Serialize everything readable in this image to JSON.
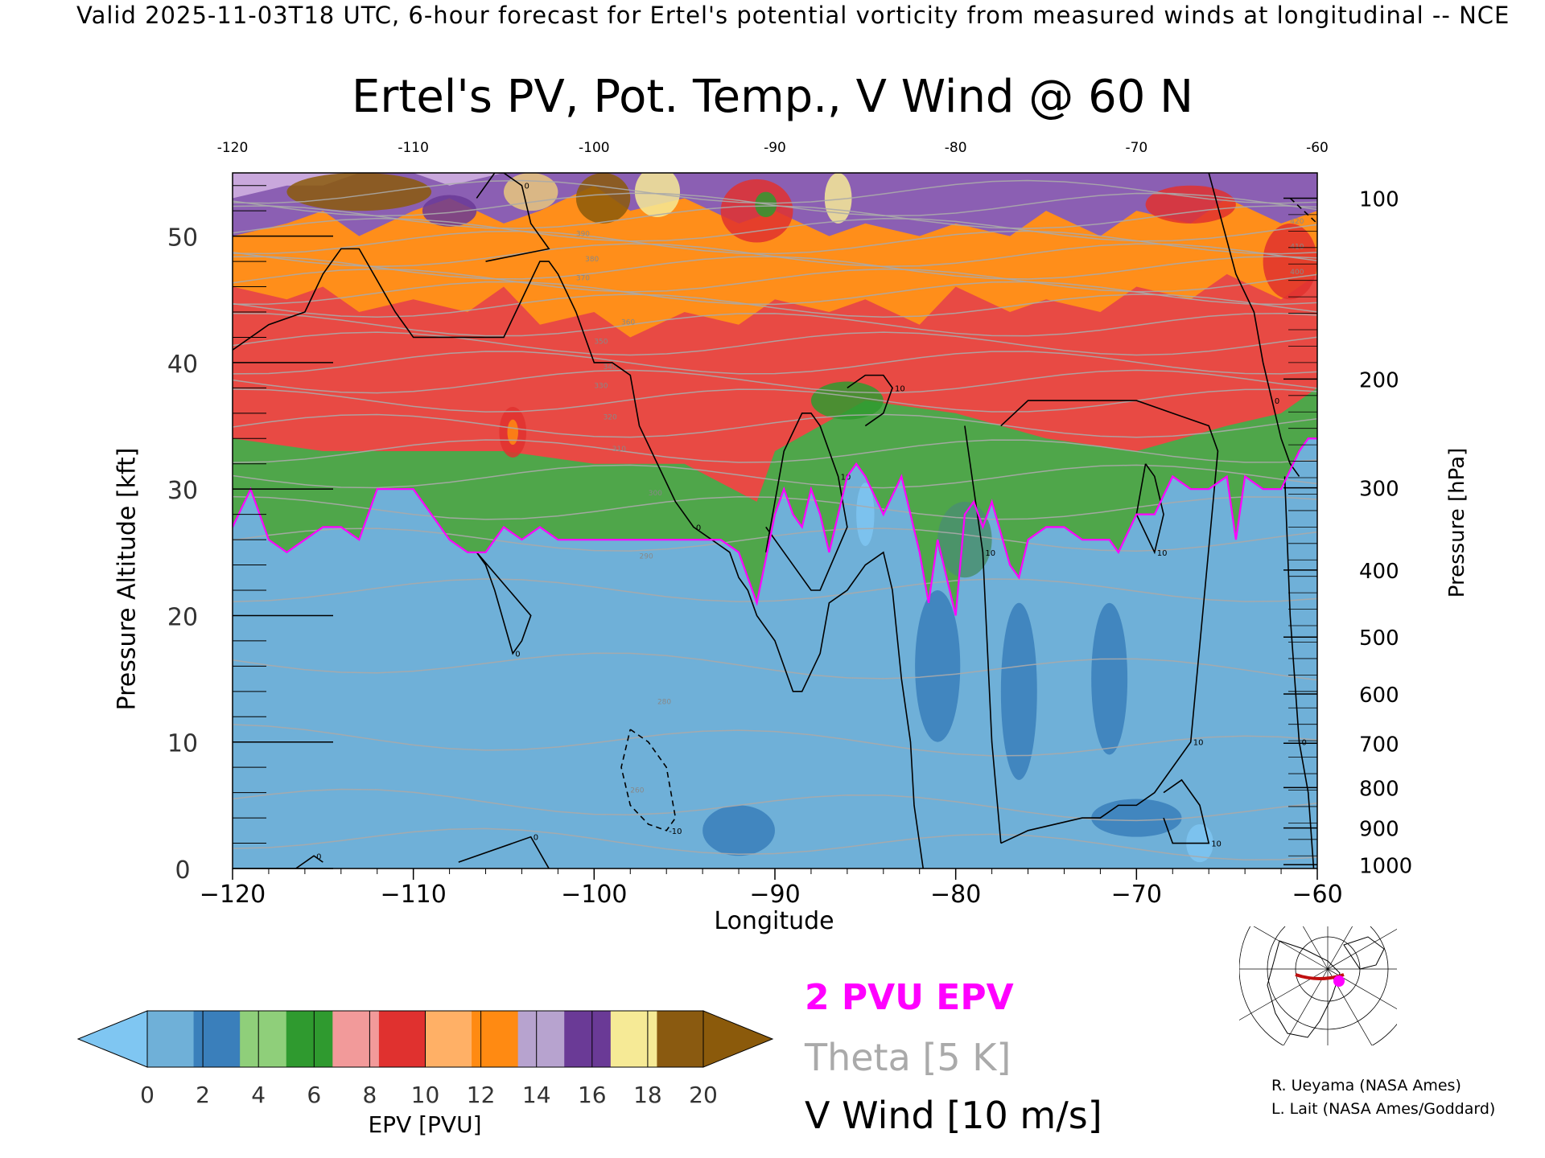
{
  "header": "Valid 2025-11-03T18 UTC, 6-hour forecast for Ertel's potential vorticity from measured winds at longitudinal -- NCE",
  "chart_data": {
    "type": "heatmap",
    "title": "Ertel's PV, Pot. Temp., V Wind @ 60 N",
    "xlabel": "Longitude",
    "ylabel": "Pressure Altitude [kft]",
    "ylabel_right": "Pressure [hPa]",
    "xlim": [
      -120,
      -60
    ],
    "ylim": [
      0,
      55
    ],
    "x_ticks": [
      "-120",
      "-110",
      "-100",
      "-90",
      "-80",
      "-70",
      "-60"
    ],
    "y_ticks": [
      "0",
      "10",
      "20",
      "30",
      "40",
      "50"
    ],
    "pressure_ticks": [
      {
        "hpa": "100",
        "kft": 53.0
      },
      {
        "hpa": "200",
        "kft": 38.7
      },
      {
        "hpa": "300",
        "kft": 30.1
      },
      {
        "hpa": "400",
        "kft": 23.6
      },
      {
        "hpa": "500",
        "kft": 18.3
      },
      {
        "hpa": "600",
        "kft": 13.8
      },
      {
        "hpa": "700",
        "kft": 9.9
      },
      {
        "hpa": "800",
        "kft": 6.4
      },
      {
        "hpa": "900",
        "kft": 3.2
      },
      {
        "hpa": "1000",
        "kft": 0.3
      }
    ],
    "colorbar": {
      "label": "EPV [PVU]",
      "ticks": [
        "0",
        "2",
        "4",
        "6",
        "8",
        "10",
        "12",
        "14",
        "16",
        "18",
        "20"
      ],
      "colors": [
        "#6fb0d8",
        "#3a7fbb",
        "#8fcf7a",
        "#2f9a2f",
        "#f29a9a",
        "#e0312f",
        "#ffb066",
        "#ff8a12",
        "#b7a3cf",
        "#6a3a96",
        "#f6ea96",
        "#8a5a10"
      ],
      "under_color": "#7fc6f2",
      "over_color": "#8b5a0b"
    },
    "bands": [
      {
        "name": "EPV 0-2",
        "color": "#6fb0d8",
        "x": [
          -120,
          -119,
          -118,
          -117,
          -115,
          -114,
          -113,
          -112,
          -111,
          -110,
          -109,
          -108,
          -107,
          -106,
          -105,
          -104,
          -103,
          -102,
          -101,
          -100,
          -99,
          -98,
          -97,
          -96,
          -95,
          -94,
          -93,
          -92,
          -91.5,
          -91,
          -90,
          -89.5,
          -89,
          -88.5,
          -88,
          -87.5,
          -87,
          -86,
          -85.5,
          -85,
          -84,
          -83,
          -82.5,
          -82,
          -81.5,
          -81,
          -80,
          -79.5,
          -79,
          -78.5,
          -78,
          -77,
          -76.5,
          -76,
          -75,
          -74,
          -73,
          -72,
          -71.5,
          -71,
          -70,
          -69,
          -68,
          -67,
          -66,
          -65,
          -64.5,
          -64,
          -63,
          -62,
          -61,
          -60.5,
          -60
        ],
        "top": [
          27,
          30,
          26,
          25,
          27,
          27,
          26,
          30,
          30,
          30,
          28,
          26,
          25,
          25,
          27,
          26,
          27,
          26,
          26,
          26,
          26,
          26,
          26,
          26,
          26,
          26,
          26,
          25,
          23,
          21,
          28,
          30,
          28,
          27,
          30,
          28,
          25,
          31,
          32,
          31,
          28,
          31,
          28,
          25,
          21,
          26,
          20,
          28,
          29,
          27,
          29,
          24,
          23,
          26,
          27,
          27,
          26,
          26,
          26,
          25,
          28,
          28,
          31,
          30,
          30,
          31,
          26,
          31,
          30,
          30,
          33,
          34,
          34
        ]
      },
      {
        "name": "EPV 2-6",
        "color": "#4fa64a",
        "x": [
          -120,
          -115,
          -110,
          -105,
          -100,
          -95,
          -91,
          -90,
          -85,
          -80,
          -75,
          -70,
          -65,
          -62,
          -60
        ],
        "top": [
          34,
          33,
          33,
          33,
          32,
          32,
          29,
          33,
          37,
          36,
          34,
          33,
          35,
          36,
          38
        ]
      },
      {
        "name": "EPV 6-10",
        "color": "#e84a44",
        "x": [
          -120,
          -117,
          -115,
          -113,
          -110,
          -107,
          -105,
          -103,
          -100,
          -98,
          -95,
          -92,
          -90,
          -87,
          -85,
          -82,
          -80,
          -77,
          -75,
          -72,
          -70,
          -67,
          -65,
          -62,
          -60
        ],
        "top": [
          46,
          45,
          46,
          44,
          45,
          44,
          46,
          43,
          44,
          42,
          44,
          43,
          45,
          44,
          45,
          43,
          46,
          44,
          45,
          44,
          46,
          45,
          47,
          45,
          47
        ]
      },
      {
        "name": "EPV 10-14",
        "color": "#ff8e1a",
        "x": [
          -120,
          -117,
          -115,
          -113,
          -110,
          -108,
          -105,
          -103,
          -100,
          -98,
          -95,
          -92,
          -90,
          -87,
          -85,
          -82,
          -80,
          -77,
          -75,
          -72,
          -70,
          -67,
          -65,
          -62,
          -60
        ],
        "top": [
          50,
          51,
          52,
          50,
          52,
          53,
          51,
          52,
          54,
          52,
          53,
          51,
          52,
          50,
          51,
          50,
          51,
          50,
          52,
          50,
          52,
          51,
          53,
          51,
          52
        ]
      },
      {
        "name": "EPV 14-18",
        "color": "#8b5fb3",
        "x": [
          -120,
          -117,
          -115,
          -113,
          -110,
          -108,
          -105,
          -103,
          -100,
          -98,
          -95,
          -92,
          -90,
          -87,
          -85,
          -82,
          -80,
          -77,
          -75,
          -72,
          -70,
          -67,
          -65,
          -62,
          -60
        ],
        "top": [
          53,
          54,
          54,
          55,
          55,
          54,
          55,
          55,
          55,
          55,
          55,
          55,
          55,
          55,
          55,
          55,
          55,
          55,
          55,
          55,
          55,
          55,
          55,
          55,
          55
        ]
      }
    ],
    "patches": [
      {
        "color": "#8b5a0b",
        "x": -113,
        "y": 53.5,
        "w": 8,
        "h": 3
      },
      {
        "color": "#8b5a0b",
        "x": -99.5,
        "y": 53,
        "w": 3,
        "h": 4
      },
      {
        "color": "#e8c77c",
        "x": -103.5,
        "y": 53.5,
        "w": 3,
        "h": 3
      },
      {
        "color": "#f6ea96",
        "x": -96.5,
        "y": 53.5,
        "w": 2.5,
        "h": 4
      },
      {
        "color": "#6a3a96",
        "x": -108,
        "y": 52,
        "w": 3,
        "h": 2.5
      },
      {
        "color": "#e0312f",
        "x": -91,
        "y": 52,
        "w": 4,
        "h": 5
      },
      {
        "color": "#2f9a2f",
        "x": -90.5,
        "y": 52.5,
        "w": 1.2,
        "h": 2
      },
      {
        "color": "#f6ea96",
        "x": -86.5,
        "y": 53,
        "w": 1.5,
        "h": 4
      },
      {
        "color": "#e0312f",
        "x": -104.5,
        "y": 34.5,
        "w": 1.5,
        "h": 4
      },
      {
        "color": "#ff8a12",
        "x": -104.5,
        "y": 34.5,
        "w": 0.6,
        "h": 2
      },
      {
        "color": "#e0312f",
        "x": -67,
        "y": 52.5,
        "w": 5,
        "h": 3
      },
      {
        "color": "#e0312f",
        "x": -61.5,
        "y": 48,
        "w": 3,
        "h": 6
      },
      {
        "color": "#2f9a2f",
        "x": -86,
        "y": 37,
        "w": 4,
        "h": 3
      },
      {
        "color": "#4a8f6e",
        "x": -79.5,
        "y": 26,
        "w": 3,
        "h": 6
      },
      {
        "color": "#7fc6f2",
        "x": -85,
        "y": 28,
        "w": 1,
        "h": 5
      },
      {
        "color": "#7fc6f2",
        "x": -66.5,
        "y": 2,
        "w": 1.5,
        "h": 3
      },
      {
        "color": "#3a7fbb",
        "x": -81,
        "y": 16,
        "w": 2.5,
        "h": 12
      },
      {
        "color": "#3a7fbb",
        "x": -76.5,
        "y": 14,
        "w": 2,
        "h": 14
      },
      {
        "color": "#3a7fbb",
        "x": -71.5,
        "y": 15,
        "w": 2,
        "h": 12
      },
      {
        "color": "#3a7fbb",
        "x": -92,
        "y": 3,
        "w": 4,
        "h": 4
      },
      {
        "color": "#3a7fbb",
        "x": -70,
        "y": 4,
        "w": 5,
        "h": 3
      }
    ],
    "theta_labels": [
      "260",
      "280",
      "290",
      "300",
      "310",
      "320",
      "330",
      "340",
      "350",
      "360",
      "370",
      "380",
      "390",
      "400",
      "410",
      "420"
    ],
    "wind_contour_labels": [
      "0",
      "10",
      "-10"
    ],
    "pv2_line": {
      "x": [
        -120,
        -119,
        -118,
        -117,
        -115,
        -114,
        -113,
        -112,
        -111,
        -110,
        -109,
        -108,
        -107,
        -106,
        -105,
        -104,
        -103,
        -102,
        -101,
        -100,
        -99,
        -98,
        -97,
        -96,
        -95,
        -94,
        -93,
        -92,
        -91.5,
        -91,
        -90,
        -89.5,
        -89,
        -88.5,
        -88,
        -87.5,
        -87,
        -86,
        -85.5,
        -85,
        -84,
        -83,
        -82.5,
        -82,
        -81.5,
        -81,
        -80,
        -79.5,
        -79,
        -78.5,
        -78,
        -77,
        -76.5,
        -76,
        -75,
        -74,
        -73,
        -72,
        -71.5,
        -71,
        -70,
        -69,
        -68,
        -67,
        -66,
        -65,
        -64.5,
        -64,
        -63,
        -62,
        -61,
        -60.5,
        -60
      ],
      "y": [
        27,
        30,
        26,
        25,
        27,
        27,
        26,
        30,
        30,
        30,
        28,
        26,
        25,
        25,
        27,
        26,
        27,
        26,
        26,
        26,
        26,
        26,
        26,
        26,
        26,
        26,
        26,
        25,
        23,
        21,
        28,
        30,
        28,
        27,
        30,
        28,
        25,
        31,
        32,
        31,
        28,
        31,
        28,
        25,
        21,
        26,
        20,
        28,
        29,
        27,
        29,
        24,
        23,
        26,
        27,
        27,
        26,
        26,
        26,
        25,
        28,
        28,
        31,
        30,
        30,
        31,
        26,
        31,
        30,
        30,
        33,
        34,
        34
      ]
    },
    "wind_contours": [
      {
        "label": "0",
        "dashed": false,
        "x": [
          -120,
          -118,
          -116,
          -115,
          -114,
          -113,
          -111,
          -110,
          -108,
          -105,
          -104,
          -103,
          -102.5,
          -102,
          -101,
          -100,
          -99,
          -98,
          -97.5,
          -96.5,
          -95.5,
          -94.5,
          -93.5,
          -92.5,
          -92,
          -91.5,
          -91,
          -90,
          -89.5,
          -89,
          -88.5,
          -87.5,
          -87,
          -86,
          -85,
          -84,
          -83.5,
          -83,
          -82.5,
          -82.3,
          -82,
          -81.8
        ],
        "y": [
          41,
          43,
          44,
          47,
          49,
          49,
          44,
          42,
          42,
          42,
          45,
          48,
          48,
          47,
          44,
          40,
          40,
          39,
          35,
          32,
          29,
          27,
          26,
          25,
          23,
          22,
          20,
          18,
          16,
          14,
          14,
          17,
          21,
          22,
          24,
          25,
          22,
          15,
          10,
          5,
          2,
          0
        ]
      },
      {
        "label": "0",
        "dashed": false,
        "x": [
          -116.5,
          -115.5,
          -115
        ],
        "y": [
          0,
          1,
          0.5
        ]
      },
      {
        "label": "0",
        "dashed": false,
        "x": [
          -107.5,
          -103.5,
          -102.5
        ],
        "y": [
          0.5,
          2.5,
          0
        ]
      },
      {
        "label": "0",
        "dashed": false,
        "x": [
          -106.5,
          -105.5,
          -105,
          -104,
          -103.5,
          -102.5,
          -106
        ],
        "y": [
          53,
          55,
          55,
          54,
          51,
          49,
          48
        ]
      },
      {
        "label": "0",
        "dashed": false,
        "x": [
          -106.5,
          -106,
          -105.5,
          -104.5,
          -104,
          -103.5,
          -106.5
        ],
        "y": [
          25,
          24,
          22,
          17,
          18,
          20,
          25
        ]
      },
      {
        "label": "0",
        "dashed": false,
        "x": [
          -66,
          -64.5,
          -63.5,
          -63,
          -62.5,
          -62,
          -61.5,
          -61
        ],
        "y": [
          55,
          47,
          44,
          40,
          37,
          34,
          32,
          31
        ]
      },
      {
        "label": "0",
        "dashed": false,
        "x": [
          -61.8,
          -61.5,
          -61,
          -60.5,
          -60.2
        ],
        "y": [
          31,
          20,
          10,
          6,
          0
        ]
      },
      {
        "label": "10",
        "dashed": false,
        "x": [
          -90.5,
          -89.5,
          -88.5,
          -88,
          -87.5,
          -86.5,
          -86,
          -87.5,
          -88,
          -89.5,
          -90.5
        ],
        "y": [
          25,
          33,
          36,
          36,
          35,
          31,
          27,
          22,
          22,
          25,
          27
        ]
      },
      {
        "label": "10",
        "dashed": false,
        "x": [
          -86,
          -85,
          -84,
          -83.5,
          -84,
          -85
        ],
        "y": [
          38,
          39,
          39,
          38,
          36,
          35
        ]
      },
      {
        "label": "10",
        "dashed": false,
        "x": [
          -77.5,
          -76,
          -74.5,
          -73,
          -70,
          -68,
          -66,
          -65.5,
          -67,
          -69,
          -70,
          -71,
          -72,
          -73,
          -76,
          -77.5
        ],
        "y": [
          35,
          37,
          37,
          37,
          37,
          36,
          35,
          33,
          10,
          6,
          5,
          5,
          4,
          4,
          3,
          2
        ]
      },
      {
        "label": "10",
        "dashed": false,
        "x": [
          -77.5,
          -78,
          -78.5,
          -79,
          -79.5
        ],
        "y": [
          2,
          10,
          25,
          30,
          35
        ]
      },
      {
        "label": "10",
        "dashed": false,
        "x": [
          -69.5,
          -69,
          -68.5,
          -69,
          -70,
          -69.5
        ],
        "y": [
          32,
          31,
          28,
          25,
          28,
          32
        ]
      },
      {
        "label": "10",
        "dashed": false,
        "x": [
          -68.5,
          -67.5,
          -66.5,
          -66,
          -68,
          -68.5
        ],
        "y": [
          6,
          7,
          5,
          2,
          2,
          4
        ]
      },
      {
        "label": "-10",
        "dashed": true,
        "x": [
          -98,
          -97,
          -96,
          -95.5,
          -96,
          -97,
          -98,
          -98.5,
          -98
        ],
        "y": [
          11,
          10,
          8,
          4,
          3,
          3.5,
          5,
          8,
          11
        ]
      },
      {
        "label": "-10",
        "dashed": true,
        "x": [
          -61.5,
          -60
        ],
        "y": [
          53,
          51
        ]
      }
    ]
  },
  "legend": {
    "epv_line": "2 PVU EPV",
    "theta": "Theta [5 K]",
    "wind": "V Wind [10 m/s]"
  },
  "credits": [
    "R. Ueyama (NASA Ames)",
    "L. Lait (NASA Ames/Goddard)"
  ],
  "colors": {
    "pv2": "#ff00ff",
    "theta": "#aaaaaa",
    "wind": "#000000"
  }
}
